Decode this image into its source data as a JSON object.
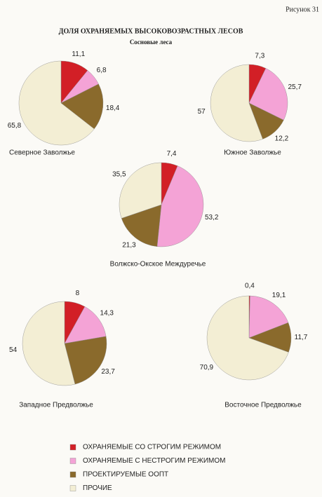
{
  "figure_label": "Рисунок 31",
  "title": "ДОЛЯ ОХРАНЯЕМЫХ ВЫСОКОВОЗРАСТНЫХ ЛЕСОВ",
  "subtitle": "Сосновые леса",
  "legend": [
    {
      "name": "ОХРАНЯЕМЫЕ СО СТРОГИМ РЕЖИМОМ",
      "color": "#d21f26"
    },
    {
      "name": "ОХРАНЯЕМЫЕ С НЕСТРОГИМ РЕЖИМОМ",
      "color": "#f4a3d6"
    },
    {
      "name": "ПРОЕКТИРУЕМЫЕ ООПТ",
      "color": "#8a6a2c"
    },
    {
      "name": "ПРОЧИЕ",
      "color": "#f3eed4"
    }
  ],
  "chart_data": [
    {
      "type": "pie",
      "label": "Северное Заволжье",
      "values": [
        11.1,
        6.8,
        18.4,
        65.8
      ],
      "value_labels": [
        "11,1",
        "6,8",
        "18,4",
        "65,8"
      ]
    },
    {
      "type": "pie",
      "label": "Южное Заволжье",
      "values": [
        7.3,
        25.7,
        12.2,
        57
      ],
      "value_labels": [
        "7,3",
        "25,7",
        "12,2",
        "57"
      ]
    },
    {
      "type": "pie",
      "label": "Волжско-Окское Междуречье",
      "values": [
        7.4,
        53.2,
        21.3,
        35.5
      ],
      "value_labels": [
        "7,4",
        "53,2",
        "21,3",
        "35,5"
      ]
    },
    {
      "type": "pie",
      "label": "Западное Предволжье",
      "values": [
        8,
        14.3,
        23.7,
        54
      ],
      "value_labels": [
        "8",
        "14,3",
        "23,7",
        "54"
      ]
    },
    {
      "type": "pie",
      "label": "Восточное Предволжье",
      "values": [
        0.4,
        19.1,
        11.7,
        70.9
      ],
      "value_labels": [
        "0,4",
        "19,1",
        "11,7",
        "70,9"
      ]
    }
  ]
}
